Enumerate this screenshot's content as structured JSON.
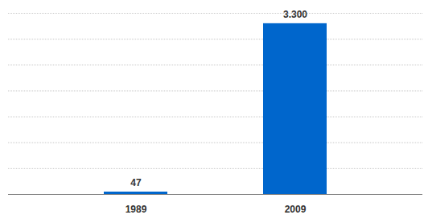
{
  "chart_data": {
    "type": "bar",
    "categories": [
      "1989",
      "2009"
    ],
    "values": [
      47,
      3300
    ],
    "value_labels": [
      "47",
      "3.300"
    ],
    "color": "#0066cc",
    "ylim": [
      0,
      3500
    ],
    "yticks": [
      0,
      500,
      1000,
      1500,
      2000,
      2500,
      3000,
      3500
    ],
    "grid": true,
    "data_labels": true,
    "tick_labels": "x"
  }
}
